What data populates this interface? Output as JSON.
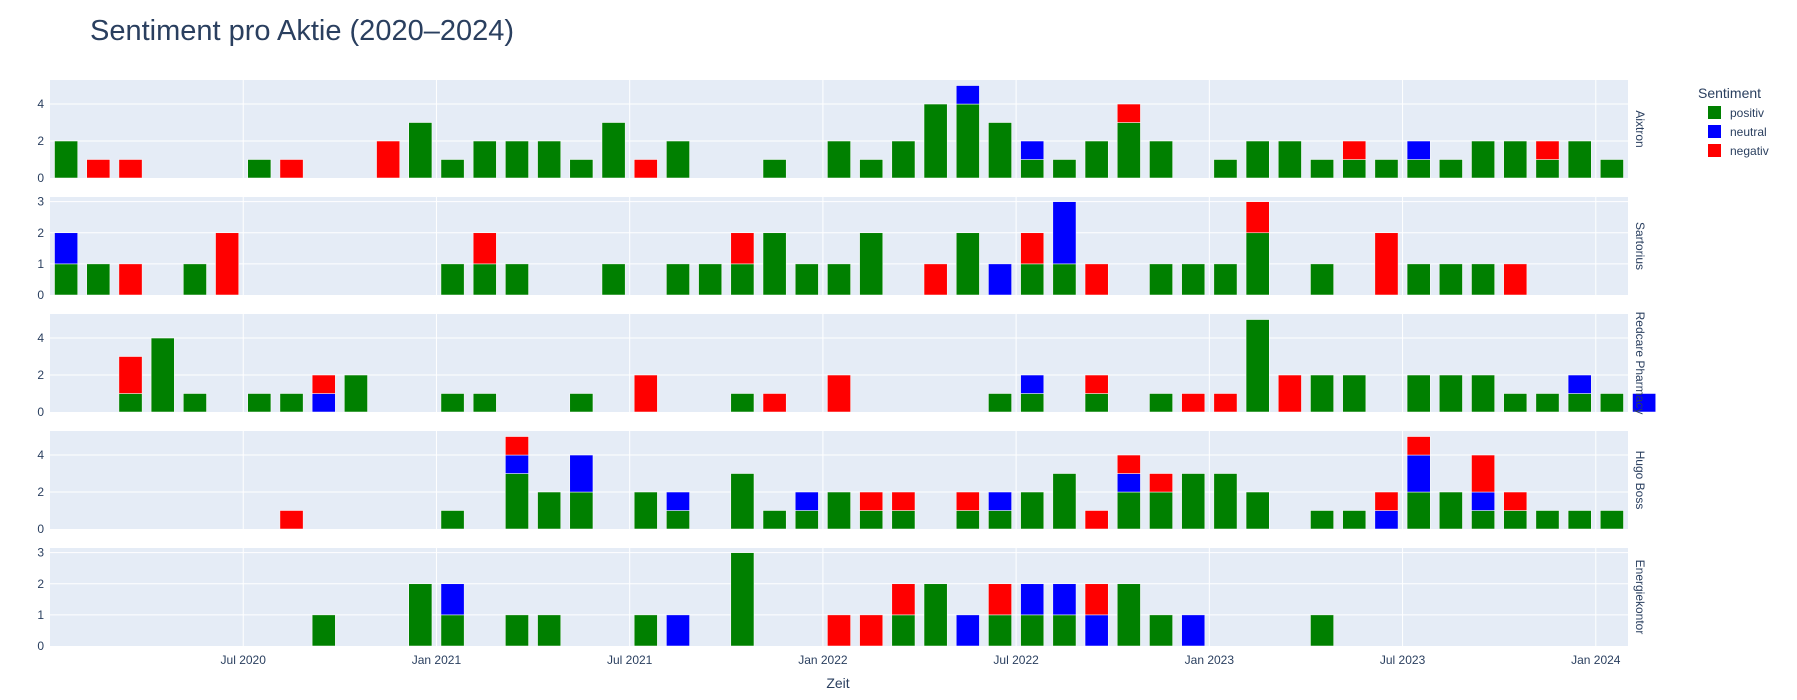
{
  "chart_data": {
    "type": "bar",
    "stacked": true,
    "title": "Sentiment pro Aktie (2020–2024)",
    "xlabel": "Zeit",
    "x_unit": "month",
    "x_range": [
      "2020-01",
      "2024-02"
    ],
    "x_tick_labels": [
      "Jul 2020",
      "Jan 2021",
      "Jul 2021",
      "Jan 2022",
      "Jul 2022",
      "Jan 2023",
      "Jul 2023",
      "Jan 2024"
    ],
    "x_tick_months": [
      "2020-07",
      "2021-01",
      "2021-07",
      "2022-01",
      "2022-07",
      "2023-01",
      "2023-07",
      "2024-01"
    ],
    "legend": {
      "title": "Sentiment",
      "placement": "top-right",
      "items": [
        {
          "name": "positiv",
          "color": "#008000"
        },
        {
          "name": "neutral",
          "color": "#0000ff"
        },
        {
          "name": "negativ",
          "color": "#ff0000"
        }
      ]
    },
    "colors": {
      "positiv": "#008000",
      "neutral": "#0000ff",
      "negativ": "#ff0000",
      "plot_bg": "#e5ecf6",
      "text": "#2a3f5f"
    },
    "start_month": "2020-01",
    "facets": [
      {
        "name": "Aixtron",
        "ylim": [
          0,
          5.3
        ],
        "yticks": [
          0,
          2,
          4
        ],
        "bars": [
          {
            "month": "2020-01",
            "positiv": 2
          },
          {
            "month": "2020-02",
            "negativ": 1
          },
          {
            "month": "2020-03",
            "negativ": 1
          },
          {
            "month": "2020-07",
            "positiv": 1
          },
          {
            "month": "2020-08",
            "negativ": 1
          },
          {
            "month": "2020-11",
            "negativ": 2
          },
          {
            "month": "2020-12",
            "positiv": 3
          },
          {
            "month": "2021-01",
            "positiv": 1
          },
          {
            "month": "2021-02",
            "positiv": 2
          },
          {
            "month": "2021-03",
            "positiv": 2
          },
          {
            "month": "2021-04",
            "positiv": 2
          },
          {
            "month": "2021-05",
            "positiv": 1
          },
          {
            "month": "2021-06",
            "positiv": 3
          },
          {
            "month": "2021-07",
            "negativ": 1
          },
          {
            "month": "2021-08",
            "positiv": 2
          },
          {
            "month": "2021-11",
            "positiv": 1
          },
          {
            "month": "2022-01",
            "positiv": 2
          },
          {
            "month": "2022-02",
            "positiv": 1
          },
          {
            "month": "2022-03",
            "positiv": 2
          },
          {
            "month": "2022-04",
            "positiv": 4
          },
          {
            "month": "2022-05",
            "positiv": 4,
            "neutral": 1
          },
          {
            "month": "2022-06",
            "positiv": 3
          },
          {
            "month": "2022-07",
            "positiv": 1,
            "neutral": 1
          },
          {
            "month": "2022-08",
            "positiv": 1
          },
          {
            "month": "2022-09",
            "positiv": 2
          },
          {
            "month": "2022-10",
            "positiv": 3,
            "negativ": 1
          },
          {
            "month": "2022-11",
            "positiv": 2
          },
          {
            "month": "2023-01",
            "positiv": 1
          },
          {
            "month": "2023-02",
            "positiv": 2
          },
          {
            "month": "2023-03",
            "positiv": 2
          },
          {
            "month": "2023-04",
            "positiv": 1
          },
          {
            "month": "2023-05",
            "positiv": 1,
            "negativ": 1
          },
          {
            "month": "2023-06",
            "positiv": 1
          },
          {
            "month": "2023-07",
            "positiv": 1,
            "neutral": 1
          },
          {
            "month": "2023-08",
            "positiv": 1
          },
          {
            "month": "2023-09",
            "positiv": 2
          },
          {
            "month": "2023-10",
            "positiv": 2
          },
          {
            "month": "2023-11",
            "positiv": 1,
            "negativ": 1
          },
          {
            "month": "2023-12",
            "positiv": 2
          },
          {
            "month": "2024-01",
            "positiv": 1
          }
        ]
      },
      {
        "name": "Sartorius",
        "ylim": [
          0,
          3.15
        ],
        "yticks": [
          0,
          1,
          2,
          3
        ],
        "bars": [
          {
            "month": "2020-01",
            "positiv": 1,
            "neutral": 1
          },
          {
            "month": "2020-02",
            "positiv": 1
          },
          {
            "month": "2020-03",
            "negativ": 1
          },
          {
            "month": "2020-05",
            "positiv": 1
          },
          {
            "month": "2020-06",
            "negativ": 2
          },
          {
            "month": "2021-01",
            "positiv": 1
          },
          {
            "month": "2021-02",
            "positiv": 1,
            "negativ": 1
          },
          {
            "month": "2021-03",
            "positiv": 1
          },
          {
            "month": "2021-06",
            "positiv": 1
          },
          {
            "month": "2021-08",
            "positiv": 1
          },
          {
            "month": "2021-09",
            "positiv": 1
          },
          {
            "month": "2021-10",
            "positiv": 1,
            "negativ": 1
          },
          {
            "month": "2021-11",
            "positiv": 2
          },
          {
            "month": "2021-12",
            "positiv": 1
          },
          {
            "month": "2022-01",
            "positiv": 1
          },
          {
            "month": "2022-02",
            "positiv": 2
          },
          {
            "month": "2022-04",
            "negativ": 1
          },
          {
            "month": "2022-05",
            "positiv": 2
          },
          {
            "month": "2022-06",
            "neutral": 1
          },
          {
            "month": "2022-07",
            "positiv": 1,
            "negativ": 1
          },
          {
            "month": "2022-08",
            "positiv": 1,
            "neutral": 2
          },
          {
            "month": "2022-09",
            "negativ": 1
          },
          {
            "month": "2022-11",
            "positiv": 1
          },
          {
            "month": "2022-12",
            "positiv": 1
          },
          {
            "month": "2023-01",
            "positiv": 1
          },
          {
            "month": "2023-02",
            "positiv": 2,
            "negativ": 1
          },
          {
            "month": "2023-04",
            "positiv": 1
          },
          {
            "month": "2023-06",
            "negativ": 2
          },
          {
            "month": "2023-07",
            "positiv": 1
          },
          {
            "month": "2023-08",
            "positiv": 1
          },
          {
            "month": "2023-09",
            "positiv": 1
          },
          {
            "month": "2023-10",
            "negativ": 1
          }
        ]
      },
      {
        "name": "Redcare Pharmacy",
        "ylim": [
          0,
          5.3
        ],
        "yticks": [
          0,
          2,
          4
        ],
        "bars": [
          {
            "month": "2020-03",
            "positiv": 1,
            "negativ": 2
          },
          {
            "month": "2020-04",
            "positiv": 4
          },
          {
            "month": "2020-05",
            "positiv": 1
          },
          {
            "month": "2020-07",
            "positiv": 1
          },
          {
            "month": "2020-08",
            "positiv": 1
          },
          {
            "month": "2020-09",
            "neutral": 1,
            "negativ": 1
          },
          {
            "month": "2020-10",
            "positiv": 2
          },
          {
            "month": "2021-01",
            "positiv": 1
          },
          {
            "month": "2021-02",
            "positiv": 1
          },
          {
            "month": "2021-05",
            "positiv": 1
          },
          {
            "month": "2021-07",
            "negativ": 2
          },
          {
            "month": "2021-10",
            "positiv": 1
          },
          {
            "month": "2021-11",
            "negativ": 1
          },
          {
            "month": "2022-01",
            "negativ": 2
          },
          {
            "month": "2022-06",
            "positiv": 1
          },
          {
            "month": "2022-07",
            "positiv": 1,
            "neutral": 1
          },
          {
            "month": "2022-09",
            "positiv": 1,
            "negativ": 1
          },
          {
            "month": "2022-11",
            "positiv": 1
          },
          {
            "month": "2022-12",
            "negativ": 1
          },
          {
            "month": "2023-01",
            "negativ": 1
          },
          {
            "month": "2023-02",
            "positiv": 5
          },
          {
            "month": "2023-03",
            "negativ": 2
          },
          {
            "month": "2023-04",
            "positiv": 2
          },
          {
            "month": "2023-05",
            "positiv": 2
          },
          {
            "month": "2023-07",
            "positiv": 2
          },
          {
            "month": "2023-08",
            "positiv": 2
          },
          {
            "month": "2023-09",
            "positiv": 2
          },
          {
            "month": "2023-10",
            "positiv": 1
          },
          {
            "month": "2023-11",
            "positiv": 1
          },
          {
            "month": "2023-12",
            "positiv": 1,
            "neutral": 1
          },
          {
            "month": "2024-01",
            "positiv": 1
          },
          {
            "month": "2024-02",
            "neutral": 1
          }
        ]
      },
      {
        "name": "Hugo Boss",
        "ylim": [
          0,
          5.3
        ],
        "yticks": [
          0,
          2,
          4
        ],
        "bars": [
          {
            "month": "2020-08",
            "negativ": 1
          },
          {
            "month": "2021-01",
            "positiv": 1
          },
          {
            "month": "2021-03",
            "positiv": 3,
            "neutral": 1,
            "negativ": 1
          },
          {
            "month": "2021-04",
            "positiv": 2
          },
          {
            "month": "2021-05",
            "positiv": 2,
            "neutral": 2
          },
          {
            "month": "2021-07",
            "positiv": 2
          },
          {
            "month": "2021-08",
            "positiv": 1,
            "neutral": 1
          },
          {
            "month": "2021-10",
            "positiv": 3
          },
          {
            "month": "2021-11",
            "positiv": 1
          },
          {
            "month": "2021-12",
            "positiv": 1,
            "neutral": 1
          },
          {
            "month": "2022-01",
            "positiv": 2
          },
          {
            "month": "2022-02",
            "positiv": 1,
            "negativ": 1
          },
          {
            "month": "2022-03",
            "positiv": 1,
            "negativ": 1
          },
          {
            "month": "2022-05",
            "positiv": 1,
            "negativ": 1
          },
          {
            "month": "2022-06",
            "positiv": 1,
            "neutral": 1
          },
          {
            "month": "2022-07",
            "positiv": 2
          },
          {
            "month": "2022-08",
            "positiv": 3
          },
          {
            "month": "2022-09",
            "negativ": 1
          },
          {
            "month": "2022-10",
            "positiv": 2,
            "neutral": 1,
            "negativ": 1
          },
          {
            "month": "2022-11",
            "positiv": 2,
            "negativ": 1
          },
          {
            "month": "2022-12",
            "positiv": 3
          },
          {
            "month": "2023-01",
            "positiv": 3
          },
          {
            "month": "2023-02",
            "positiv": 2
          },
          {
            "month": "2023-04",
            "positiv": 1
          },
          {
            "month": "2023-05",
            "positiv": 1
          },
          {
            "month": "2023-06",
            "neutral": 1,
            "negativ": 1
          },
          {
            "month": "2023-07",
            "positiv": 2,
            "neutral": 2,
            "negativ": 1
          },
          {
            "month": "2023-08",
            "positiv": 2
          },
          {
            "month": "2023-09",
            "positiv": 1,
            "neutral": 1,
            "negativ": 2
          },
          {
            "month": "2023-10",
            "positiv": 1,
            "negativ": 1
          },
          {
            "month": "2023-11",
            "positiv": 1
          },
          {
            "month": "2023-12",
            "positiv": 1
          },
          {
            "month": "2024-01",
            "positiv": 1
          }
        ]
      },
      {
        "name": "Energiekontor",
        "ylim": [
          0,
          3.15
        ],
        "yticks": [
          0,
          1,
          2,
          3
        ],
        "bars": [
          {
            "month": "2020-09",
            "positiv": 1
          },
          {
            "month": "2020-12",
            "positiv": 2
          },
          {
            "month": "2021-01",
            "positiv": 1,
            "neutral": 1
          },
          {
            "month": "2021-03",
            "positiv": 1
          },
          {
            "month": "2021-04",
            "positiv": 1
          },
          {
            "month": "2021-07",
            "positiv": 1
          },
          {
            "month": "2021-08",
            "neutral": 1
          },
          {
            "month": "2021-10",
            "positiv": 3
          },
          {
            "month": "2022-01",
            "negativ": 1
          },
          {
            "month": "2022-02",
            "negativ": 1
          },
          {
            "month": "2022-03",
            "positiv": 1,
            "negativ": 1
          },
          {
            "month": "2022-04",
            "positiv": 2
          },
          {
            "month": "2022-05",
            "neutral": 1
          },
          {
            "month": "2022-06",
            "positiv": 1,
            "negativ": 1
          },
          {
            "month": "2022-07",
            "positiv": 1,
            "neutral": 1
          },
          {
            "month": "2022-08",
            "positiv": 1,
            "neutral": 1
          },
          {
            "month": "2022-09",
            "neutral": 1,
            "negativ": 1
          },
          {
            "month": "2022-10",
            "positiv": 2
          },
          {
            "month": "2022-11",
            "positiv": 1
          },
          {
            "month": "2022-12",
            "neutral": 1
          },
          {
            "month": "2023-04",
            "positiv": 1
          }
        ]
      }
    ]
  }
}
